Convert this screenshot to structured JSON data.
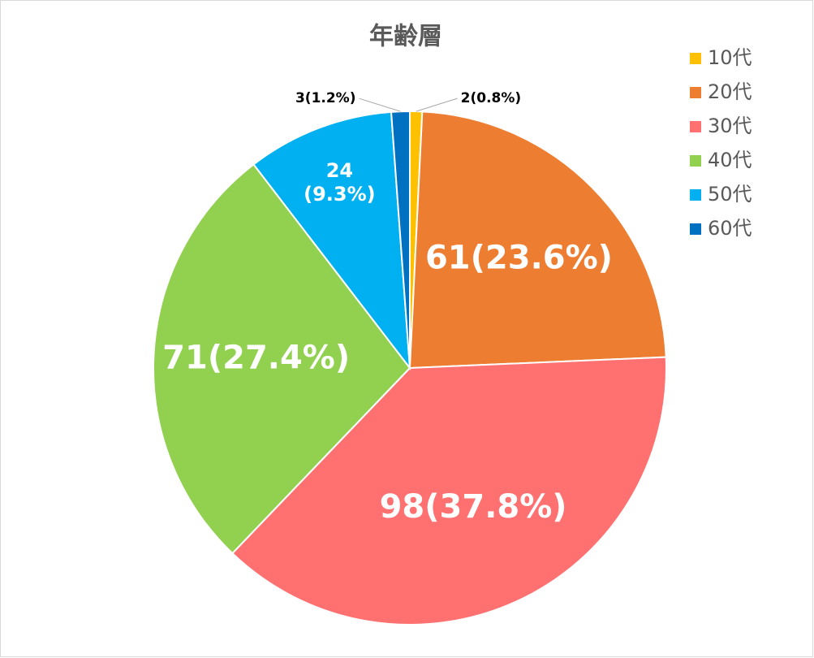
{
  "chart_data": {
    "type": "pie",
    "title": "年齢層",
    "categories": [
      "10代",
      "20代",
      "30代",
      "40代",
      "50代",
      "60代"
    ],
    "values": [
      2,
      61,
      98,
      71,
      24,
      3
    ],
    "value_labels": [
      "2(0.8%)",
      "61(23.6%)",
      "98(37.8%)",
      "71(27.4%)",
      "24\n(9.3%)",
      "3(1.2%)"
    ],
    "colors": [
      "#FFC000",
      "#ED7D31",
      "#FF7070",
      "#92D050",
      "#00B0F0",
      "#0070C0"
    ],
    "legend": "right"
  }
}
